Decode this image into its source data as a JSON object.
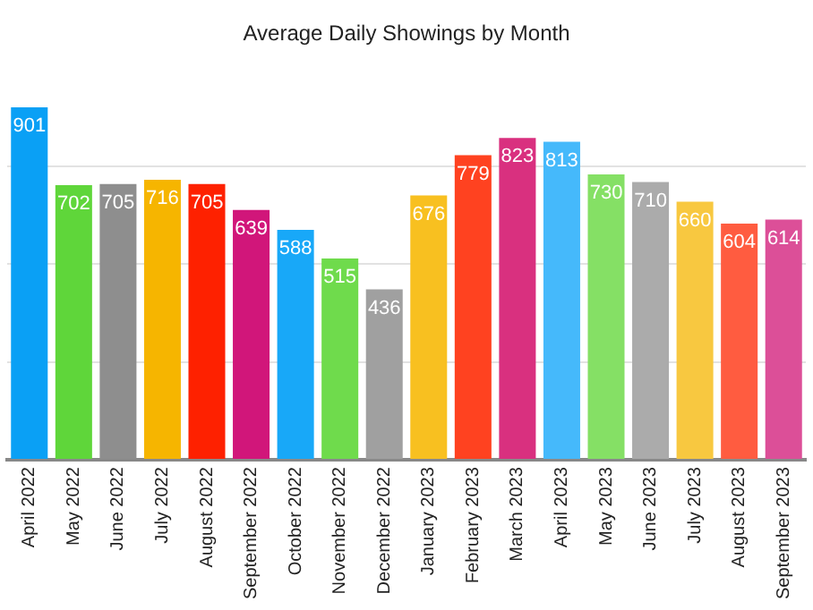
{
  "chart_data": {
    "type": "bar",
    "title": "Average Daily Showings by Month",
    "categories": [
      "April 2022",
      "May 2022",
      "June 2022",
      "July 2022",
      "August 2022",
      "September 2022",
      "October 2022",
      "November 2022",
      "December 2022",
      "January 2023",
      "February 2023",
      "March 2023",
      "April 2023",
      "May 2023",
      "June 2023",
      "July 2023",
      "August 2023",
      "September 2023"
    ],
    "values": [
      901,
      702,
      705,
      716,
      705,
      639,
      588,
      515,
      436,
      676,
      779,
      823,
      813,
      730,
      710,
      660,
      604,
      614
    ],
    "colors": [
      "#0aa0f5",
      "#5fd63a",
      "#8e8e8e",
      "#f6b500",
      "#fe2100",
      "#d1167a",
      "#18a8f8",
      "#6fdb4c",
      "#a0a0a0",
      "#f8c020",
      "#ff4220",
      "#d9307f",
      "#45b9fb",
      "#85e065",
      "#ababab",
      "#f8c840",
      "#ff5c40",
      "#dc4f98"
    ],
    "yticks": [
      {
        "value": 0,
        "label": null
      },
      {
        "value": 250,
        "label": null
      },
      {
        "value": 500,
        "label": null
      },
      {
        "value": 750,
        "label": null
      }
    ],
    "grid": "y",
    "data_labels": true
  }
}
